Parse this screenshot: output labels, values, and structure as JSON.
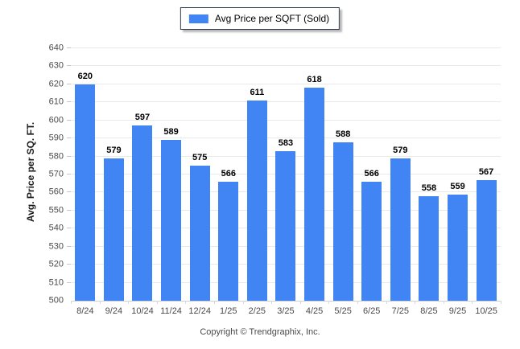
{
  "legend": {
    "label": "Avg Price per SQFT (Sold)",
    "swatch_color": "#4184f4"
  },
  "footer": {
    "copyright": "Copyright © Trendgraphix, Inc."
  },
  "chart_data": {
    "type": "bar",
    "title": "",
    "categories": [
      "8/24",
      "9/24",
      "10/24",
      "11/24",
      "12/24",
      "1/25",
      "2/25",
      "3/25",
      "4/25",
      "5/25",
      "6/25",
      "7/25",
      "8/25",
      "9/25",
      "10/25"
    ],
    "values": [
      620,
      579,
      597,
      589,
      575,
      566,
      611,
      583,
      618,
      588,
      566,
      579,
      558,
      559,
      567
    ],
    "xlabel": "",
    "ylabel": "Avg. Price per SQ. FT.",
    "ylim": [
      500,
      640
    ],
    "ytick_step": 10,
    "grid": true,
    "legend_position": "top-center",
    "bar_color": "#4184f4",
    "value_labels": true
  }
}
